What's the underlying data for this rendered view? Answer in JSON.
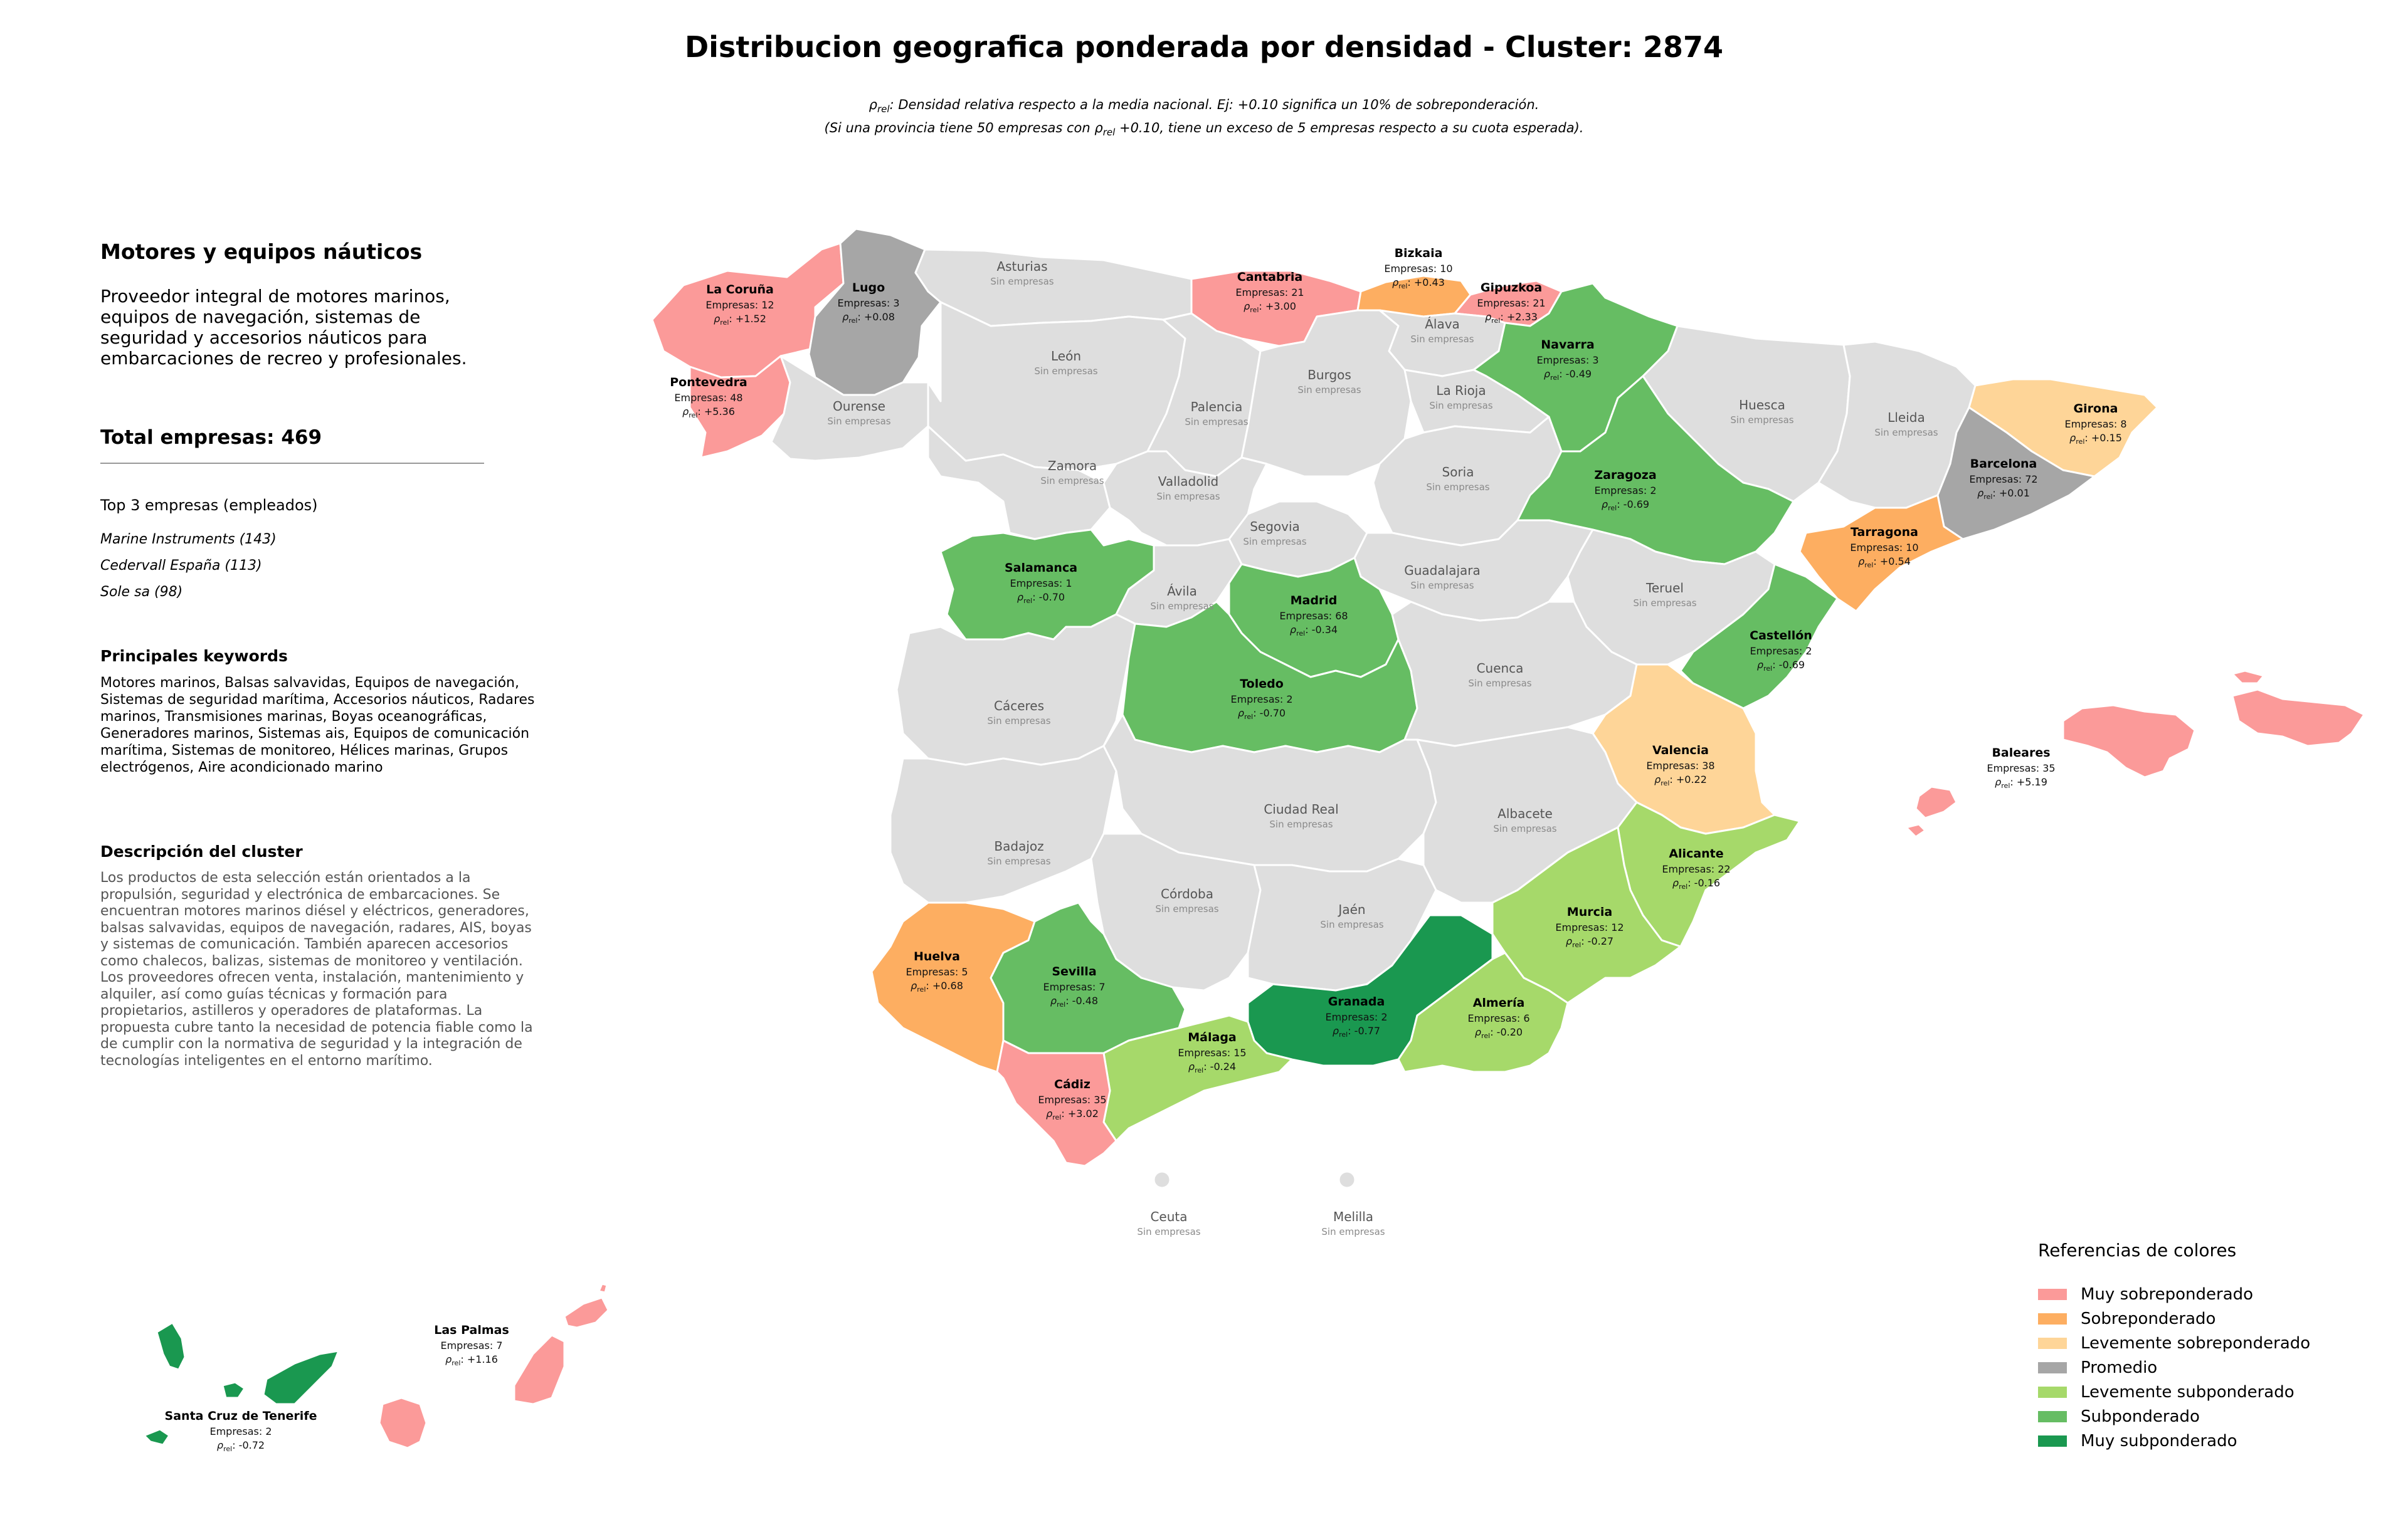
{
  "title": "Distribucion geografica ponderada por densidad - Cluster: 2874",
  "subtitle": {
    "line1": ": Densidad relativa respecto a la media nacional. Ej: +0.10 significa un 10% de sobreponderación.",
    "line2a": "(Si una provincia tiene 50 empresas con ",
    "line2b": " +0.10, tiene un exceso de 5 empresas respecto a su cuota esperada).",
    "rho": "ρ",
    "rel": "rel"
  },
  "sidebar": {
    "cluster_name": "Motores y equipos náuticos",
    "cluster_desc": "Proveedor integral de motores marinos, equipos de navegación, sistemas de seguridad y accesorios náuticos para embarcaciones de recreo y profesionales.",
    "total": "Total empresas: 469",
    "top_title": "Top 3 empresas (empleados)",
    "top_companies": [
      "Marine Instruments (143)",
      "Cedervall España (113)",
      "Sole sa (98)"
    ],
    "keywords_title": "Principales keywords",
    "keywords": "Motores marinos, Balsas salvavidas, Equipos de navegación, Sistemas de seguridad marítima, Accesorios náuticos, Radares marinos, Transmisiones marinas, Boyas oceanográficas, Generadores marinos, Sistemas ais, Equipos de comunicación marítima, Sistemas de monitoreo, Hélices marinas, Grupos electrógenos, Aire acondicionado marino",
    "desc_title": "Descripción del cluster",
    "desc": "Los productos de esta selección están orientados a la propulsión, seguridad y electrónica de embarcaciones. Se encuentran motores marinos diésel y eléctricos, generadores, balsas salvavidas, equipos de navegación, radares, AIS, boyas y sistemas de comunicación. También aparecen accesorios como chalecos, balizas, sistemas de monitoreo y ventilación. Los proveedores ofrecen venta, instalación, mantenimiento y alquiler, así como guías técnicas y formación para propietarios, astilleros y operadores de plataformas. La propuesta cubre tanto la necesidad de potencia fiable como la de cumplir con la normativa de seguridad y la integración de tecnologías inteligentes en el entorno marítimo."
  },
  "labels": {
    "empresas_prefix": "Empresas: ",
    "sin_empresas": "Sin empresas",
    "rho": "ρ",
    "rel": "rel"
  },
  "colors": {
    "muy_sobre": "#fb9a99",
    "sobre": "#fdae61",
    "lev_sobre": "#fed598",
    "promedio": "#a6a6a6",
    "lev_sub": "#a6d96a",
    "sub": "#66bd63",
    "muy_sub": "#1a9850",
    "sin": "#dedede",
    "border": "#ffffff"
  },
  "legend": {
    "title": "Referencias de colores",
    "items": [
      {
        "key": "muy_sobre",
        "label": "Muy sobreponderado"
      },
      {
        "key": "sobre",
        "label": "Sobreponderado"
      },
      {
        "key": "lev_sobre",
        "label": "Levemente sobreponderado"
      },
      {
        "key": "promedio",
        "label": "Promedio"
      },
      {
        "key": "lev_sub",
        "label": "Levemente subponderado"
      },
      {
        "key": "sub",
        "label": "Subponderado"
      },
      {
        "key": "muy_sub",
        "label": "Muy subponderado"
      }
    ]
  },
  "provinces": [
    {
      "id": "la-coruna",
      "name": "La Coruña",
      "category": "muy_sobre",
      "empresas": 12,
      "rho": "+1.52"
    },
    {
      "id": "lugo",
      "name": "Lugo",
      "category": "promedio",
      "empresas": 3,
      "rho": "+0.08"
    },
    {
      "id": "pontevedra",
      "name": "Pontevedra",
      "category": "muy_sobre",
      "empresas": 48,
      "rho": "+5.36"
    },
    {
      "id": "ourense",
      "name": "Ourense",
      "category": "sin"
    },
    {
      "id": "asturias",
      "name": "Asturias",
      "category": "sin"
    },
    {
      "id": "cantabria",
      "name": "Cantabria",
      "category": "muy_sobre",
      "empresas": 21,
      "rho": "+3.00"
    },
    {
      "id": "bizkaia",
      "name": "Bizkaia",
      "category": "sobre",
      "empresas": 10,
      "rho": "+0.43"
    },
    {
      "id": "gipuzkoa",
      "name": "Gipuzkoa",
      "category": "muy_sobre",
      "empresas": 21,
      "rho": "+2.33"
    },
    {
      "id": "alava",
      "name": "Álava",
      "category": "sin"
    },
    {
      "id": "navarra",
      "name": "Navarra",
      "category": "sub",
      "empresas": 3,
      "rho": "-0.49"
    },
    {
      "id": "leon",
      "name": "León",
      "category": "sin"
    },
    {
      "id": "palencia",
      "name": "Palencia",
      "category": "sin"
    },
    {
      "id": "burgos",
      "name": "Burgos",
      "category": "sin"
    },
    {
      "id": "la-rioja",
      "name": "La Rioja",
      "category": "sin"
    },
    {
      "id": "huesca",
      "name": "Huesca",
      "category": "sin"
    },
    {
      "id": "lleida",
      "name": "Lleida",
      "category": "sin"
    },
    {
      "id": "girona",
      "name": "Girona",
      "category": "lev_sobre",
      "empresas": 8,
      "rho": "+0.15"
    },
    {
      "id": "barcelona",
      "name": "Barcelona",
      "category": "promedio",
      "empresas": 72,
      "rho": "+0.01"
    },
    {
      "id": "tarragona",
      "name": "Tarragona",
      "category": "sobre",
      "empresas": 10,
      "rho": "+0.54"
    },
    {
      "id": "zamora",
      "name": "Zamora",
      "category": "sin"
    },
    {
      "id": "valladolid",
      "name": "Valladolid",
      "category": "sin"
    },
    {
      "id": "soria",
      "name": "Soria",
      "category": "sin"
    },
    {
      "id": "zaragoza",
      "name": "Zaragoza",
      "category": "sub",
      "empresas": 2,
      "rho": "-0.69"
    },
    {
      "id": "salamanca",
      "name": "Salamanca",
      "category": "sub",
      "empresas": 1,
      "rho": "-0.70"
    },
    {
      "id": "segovia",
      "name": "Segovia",
      "category": "sin"
    },
    {
      "id": "guadalajara",
      "name": "Guadalajara",
      "category": "sin"
    },
    {
      "id": "teruel",
      "name": "Teruel",
      "category": "sin"
    },
    {
      "id": "avila",
      "name": "Ávila",
      "category": "sin"
    },
    {
      "id": "madrid",
      "name": "Madrid",
      "category": "sub",
      "empresas": 68,
      "rho": "-0.34"
    },
    {
      "id": "castellon",
      "name": "Castellón",
      "category": "sub",
      "empresas": 2,
      "rho": "-0.69"
    },
    {
      "id": "caceres",
      "name": "Cáceres",
      "category": "sin"
    },
    {
      "id": "toledo",
      "name": "Toledo",
      "category": "sub",
      "empresas": 2,
      "rho": "-0.70"
    },
    {
      "id": "cuenca",
      "name": "Cuenca",
      "category": "sin"
    },
    {
      "id": "valencia",
      "name": "Valencia",
      "category": "lev_sobre",
      "empresas": 38,
      "rho": "+0.22"
    },
    {
      "id": "badajoz",
      "name": "Badajoz",
      "category": "sin"
    },
    {
      "id": "ciudad-real",
      "name": "Ciudad Real",
      "category": "sin"
    },
    {
      "id": "albacete",
      "name": "Albacete",
      "category": "sin"
    },
    {
      "id": "alicante",
      "name": "Alicante",
      "category": "lev_sub",
      "empresas": 22,
      "rho": "-0.16"
    },
    {
      "id": "cordoba",
      "name": "Córdoba",
      "category": "sin"
    },
    {
      "id": "jaen",
      "name": "Jaén",
      "category": "sin"
    },
    {
      "id": "murcia",
      "name": "Murcia",
      "category": "lev_sub",
      "empresas": 12,
      "rho": "-0.27"
    },
    {
      "id": "huelva",
      "name": "Huelva",
      "category": "sobre",
      "empresas": 5,
      "rho": "+0.68"
    },
    {
      "id": "sevilla",
      "name": "Sevilla",
      "category": "sub",
      "empresas": 7,
      "rho": "-0.48"
    },
    {
      "id": "granada",
      "name": "Granada",
      "category": "muy_sub",
      "empresas": 2,
      "rho": "-0.77"
    },
    {
      "id": "almeria",
      "name": "Almería",
      "category": "lev_sub",
      "empresas": 6,
      "rho": "-0.20"
    },
    {
      "id": "malaga",
      "name": "Málaga",
      "category": "lev_sub",
      "empresas": 15,
      "rho": "-0.24"
    },
    {
      "id": "cadiz",
      "name": "Cádiz",
      "category": "muy_sobre",
      "empresas": 35,
      "rho": "+3.02"
    },
    {
      "id": "baleares",
      "name": "Baleares",
      "category": "muy_sobre",
      "empresas": 35,
      "rho": "+5.19"
    },
    {
      "id": "ceuta",
      "name": "Ceuta",
      "category": "sin"
    },
    {
      "id": "melilla",
      "name": "Melilla",
      "category": "sin"
    },
    {
      "id": "las-palmas",
      "name": "Las Palmas",
      "category": "muy_sobre",
      "empresas": 7,
      "rho": "+1.16"
    },
    {
      "id": "santa-cruz",
      "name": "Santa Cruz de Tenerife",
      "category": "muy_sub",
      "empresas": 2,
      "rho": "-0.72"
    }
  ]
}
